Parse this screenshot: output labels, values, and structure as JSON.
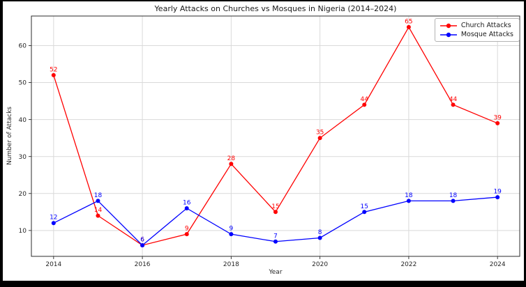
{
  "chart": {
    "title": "Yearly Attacks on Churches vs Mosques in Nigeria (2014–2024)",
    "xlabel": "Year",
    "ylabel": "Number of Attacks"
  },
  "legend": {
    "position": "upper right",
    "items": [
      {
        "label": "Church Attacks",
        "color": "#ff0000"
      },
      {
        "label": "Mosque Attacks",
        "color": "#0000ff"
      }
    ]
  },
  "chart_data": {
    "type": "line",
    "title": "Yearly Attacks on Churches vs Mosques in Nigeria (2014–2024)",
    "xlabel": "Year",
    "ylabel": "Number of Attacks",
    "x": [
      2014,
      2015,
      2016,
      2017,
      2018,
      2019,
      2020,
      2021,
      2022,
      2023,
      2024
    ],
    "series": [
      {
        "name": "Church Attacks",
        "color": "#ff0000",
        "marker": "circle",
        "values": [
          52,
          14,
          6,
          9,
          28,
          15,
          35,
          44,
          65,
          44,
          39
        ]
      },
      {
        "name": "Mosque Attacks",
        "color": "#0000ff",
        "marker": "circle",
        "values": [
          12,
          18,
          6,
          16,
          9,
          7,
          8,
          15,
          18,
          18,
          19
        ]
      }
    ],
    "x_ticks": [
      2014,
      2016,
      2018,
      2020,
      2022,
      2024
    ],
    "y_ticks": [
      10,
      20,
      30,
      40,
      50,
      60
    ],
    "xlim": [
      2013.5,
      2024.5
    ],
    "ylim": [
      3,
      68
    ],
    "grid": true,
    "point_labels": true,
    "legend_position": "upper right"
  },
  "colors": {
    "frame": "#000000",
    "figure_bg": "#ffffff",
    "grid": "#d9d9d9",
    "spine": "#2b2b2b",
    "tick_text": "#262626",
    "title_text": "#1a1a1a"
  }
}
